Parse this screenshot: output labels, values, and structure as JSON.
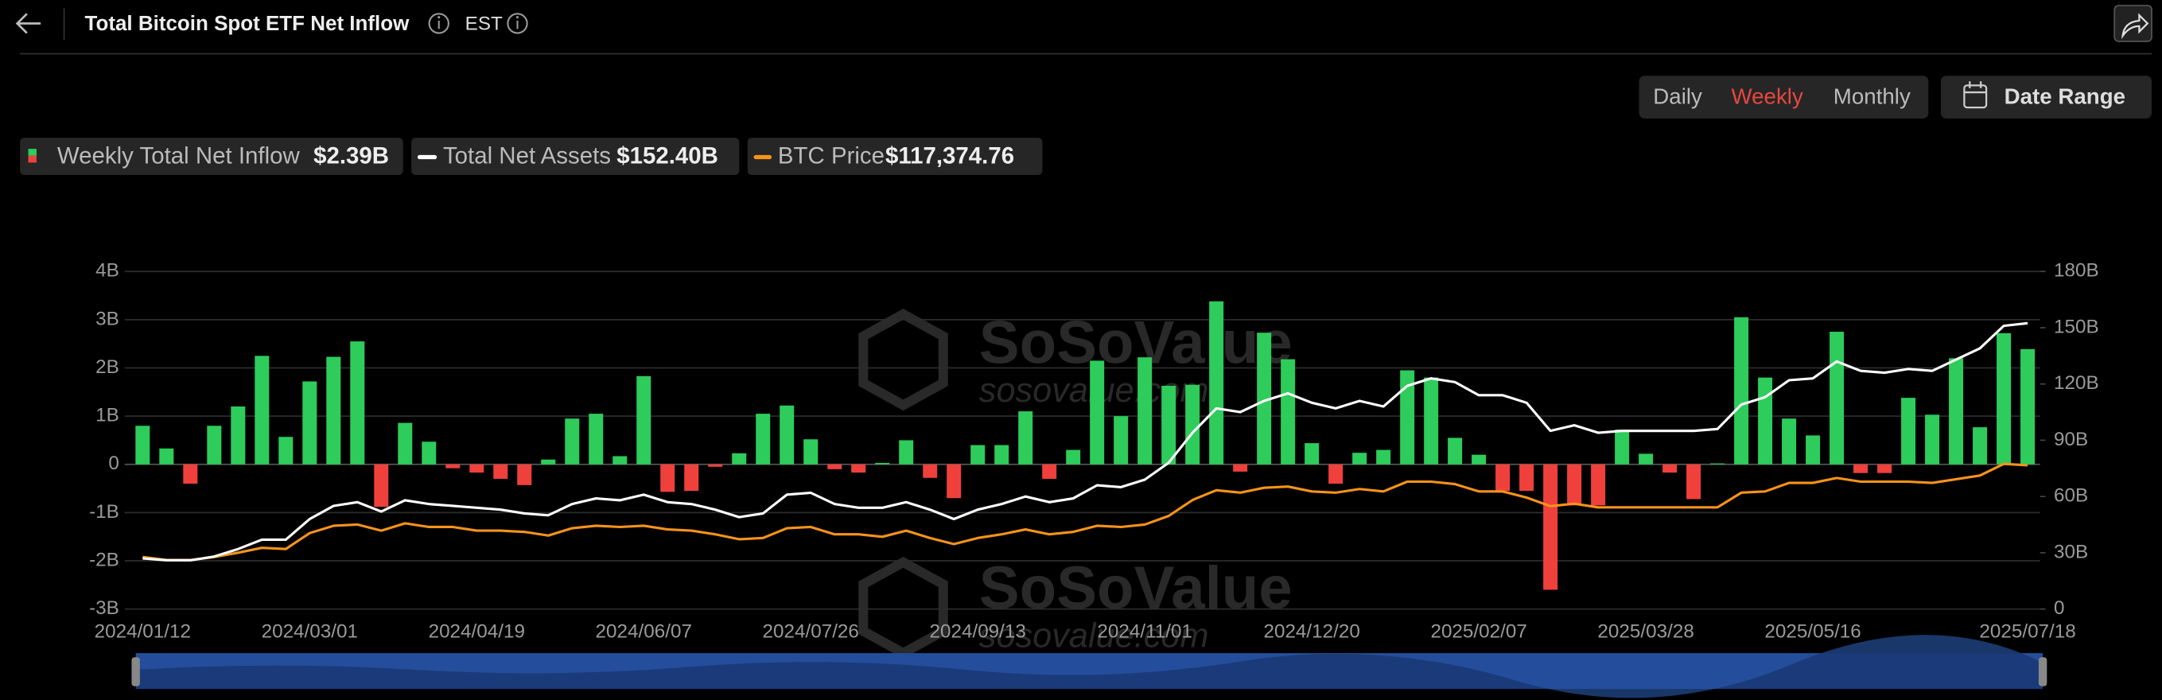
{
  "header": {
    "title": "Total Bitcoin Spot ETF Net Inflow",
    "timezone": "EST"
  },
  "controls": {
    "intervals": [
      "Daily",
      "Weekly",
      "Monthly"
    ],
    "selected": "Weekly",
    "date_range": "Date Range"
  },
  "watermark": {
    "brand": "SoSoValue",
    "site": "sosovalue.com"
  },
  "chart_data": {
    "type": "combo",
    "x": [
      "2024/01/12",
      "2024/01/19",
      "2024/01/26",
      "2024/02/02",
      "2024/02/09",
      "2024/02/16",
      "2024/02/23",
      "2024/03/01",
      "2024/03/08",
      "2024/03/15",
      "2024/03/22",
      "2024/03/29",
      "2024/04/05",
      "2024/04/12",
      "2024/04/19",
      "2024/04/26",
      "2024/05/03",
      "2024/05/10",
      "2024/05/17",
      "2024/05/24",
      "2024/05/31",
      "2024/06/07",
      "2024/06/14",
      "2024/06/21",
      "2024/06/28",
      "2024/07/05",
      "2024/07/12",
      "2024/07/19",
      "2024/07/26",
      "2024/08/02",
      "2024/08/09",
      "2024/08/16",
      "2024/08/23",
      "2024/08/30",
      "2024/09/06",
      "2024/09/13",
      "2024/09/20",
      "2024/09/27",
      "2024/10/04",
      "2024/10/11",
      "2024/10/18",
      "2024/10/25",
      "2024/11/01",
      "2024/11/08",
      "2024/11/15",
      "2024/11/22",
      "2024/11/29",
      "2024/12/06",
      "2024/12/13",
      "2024/12/20",
      "2024/12/27",
      "2025/01/03",
      "2025/01/10",
      "2025/01/17",
      "2025/01/24",
      "2025/01/31",
      "2025/02/07",
      "2025/02/14",
      "2025/02/21",
      "2025/02/28",
      "2025/03/07",
      "2025/03/14",
      "2025/03/21",
      "2025/03/28",
      "2025/04/04",
      "2025/04/11",
      "2025/04/18",
      "2025/04/25",
      "2025/05/02",
      "2025/05/09",
      "2025/05/16",
      "2025/05/23",
      "2025/05/30",
      "2025/06/06",
      "2025/06/13",
      "2025/06/20",
      "2025/06/27",
      "2025/07/04",
      "2025/07/11",
      "2025/07/18"
    ],
    "xticks": [
      "2024/01/12",
      "2024/03/01",
      "2024/04/19",
      "2024/06/07",
      "2024/07/26",
      "2024/09/13",
      "2024/11/01",
      "2024/12/20",
      "2025/02/07",
      "2025/03/28",
      "2025/05/16",
      "2025/07/18"
    ],
    "ylim": [
      -3,
      4
    ],
    "yticks": [
      {
        "value": 4,
        "label": "4B"
      },
      {
        "value": 3,
        "label": "3B"
      },
      {
        "value": 2,
        "label": "2B"
      },
      {
        "value": 1,
        "label": "1B"
      },
      0,
      {
        "value": -1,
        "label": "-1B"
      },
      {
        "value": -2,
        "label": "-2B"
      },
      {
        "value": -3,
        "label": "-3B"
      }
    ],
    "y2lim": [
      0,
      180
    ],
    "y2ticks": [
      {
        "value": 180,
        "label": "180B"
      },
      {
        "value": 150,
        "label": "150B"
      },
      {
        "value": 120,
        "label": "120B"
      },
      {
        "value": 90,
        "label": "90B"
      },
      {
        "value": 60,
        "label": "60B"
      },
      {
        "value": 30,
        "label": "30B"
      },
      0
    ],
    "grid": true,
    "series": [
      {
        "name": "Weekly Total Net Inflow",
        "type": "bar",
        "color": "#2ecc5b",
        "negative_color": "#f0403c",
        "legend_label": "$2.39B",
        "values": [
          0.8,
          0.33,
          -0.4,
          0.8,
          1.2,
          2.25,
          0.57,
          1.72,
          2.23,
          2.55,
          -0.88,
          0.86,
          0.47,
          -0.08,
          -0.17,
          -0.3,
          -0.43,
          0.1,
          0.95,
          1.05,
          0.17,
          1.83,
          -0.57,
          -0.55,
          -0.05,
          0.23,
          1.05,
          1.22,
          0.52,
          -0.1,
          -0.17,
          0.03,
          0.5,
          -0.28,
          -0.7,
          0.4,
          0.4,
          1.1,
          -0.3,
          0.3,
          2.15,
          1.0,
          2.22,
          1.63,
          1.65,
          3.38,
          -0.15,
          2.73,
          2.18,
          0.44,
          -0.4,
          0.24,
          0.3,
          1.95,
          1.8,
          0.55,
          0.2,
          -0.55,
          -0.55,
          -2.6,
          -0.85,
          -0.85,
          0.72,
          0.22,
          -0.17,
          -0.72,
          0.02,
          3.05,
          1.8,
          0.95,
          0.6,
          2.75,
          -0.18,
          -0.18,
          1.38,
          1.03,
          2.2,
          0.77,
          2.72,
          2.39
        ]
      },
      {
        "name": "Total Net Assets",
        "type": "line",
        "color": "#ffffff",
        "axis": "y2",
        "legend_label": "$152.40B",
        "values": [
          27,
          26,
          26,
          28,
          32,
          37,
          37,
          48,
          55,
          57,
          52,
          58,
          56,
          55,
          54,
          53,
          51,
          50,
          56,
          59,
          58,
          61,
          57,
          56,
          53,
          49,
          51,
          61,
          62,
          56,
          54,
          54,
          57,
          53,
          48,
          53,
          56,
          60,
          57,
          59,
          66,
          65,
          69,
          78,
          94,
          107,
          105,
          111,
          115,
          110,
          107,
          111,
          108,
          119,
          123,
          121,
          114,
          114,
          110,
          95,
          98,
          94,
          95,
          95,
          95,
          95,
          96,
          109,
          113,
          122,
          123,
          132,
          127,
          126,
          128,
          127,
          133,
          139,
          151,
          152.4
        ]
      },
      {
        "name": "BTC Price",
        "type": "line",
        "color": "#f7931a",
        "legend_label": "$117,374.76",
        "values": [
          42500,
          40000,
          40000,
          42500,
          46000,
          50000,
          49000,
          62000,
          68000,
          69000,
          64000,
          70000,
          67000,
          67000,
          64000,
          64000,
          63000,
          60000,
          66000,
          68000,
          67000,
          68000,
          65000,
          64000,
          61000,
          57000,
          58000,
          66000,
          67000,
          61000,
          61000,
          59000,
          64000,
          58000,
          53000,
          58000,
          61000,
          65000,
          61000,
          63000,
          68000,
          67000,
          69000,
          76000,
          89000,
          97000,
          95000,
          99000,
          100000,
          96000,
          95000,
          98000,
          96000,
          104000,
          104000,
          102000,
          96000,
          96000,
          91000,
          84000,
          86000,
          83000,
          83000,
          83000,
          83000,
          83000,
          83000,
          95000,
          96000,
          103000,
          103000,
          107000,
          104000,
          104000,
          104000,
          103000,
          106000,
          109000,
          118500,
          117374.76
        ]
      }
    ]
  }
}
